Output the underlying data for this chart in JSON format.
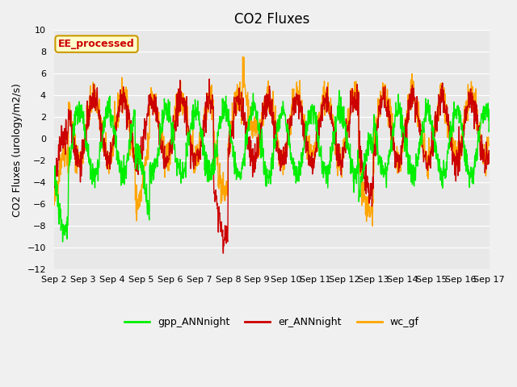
{
  "title": "CO2 Fluxes",
  "ylabel": "CO2 Fluxes (urology/m2/s)",
  "ylim": [
    -12,
    10
  ],
  "yticks": [
    -12,
    -10,
    -8,
    -6,
    -4,
    -2,
    0,
    2,
    4,
    6,
    8,
    10
  ],
  "xlim": [
    2,
    17
  ],
  "x_tick_labels": [
    "Sep 2",
    "Sep 3",
    "Sep 4",
    "Sep 5",
    "Sep 6",
    "Sep 7",
    "Sep 8",
    "Sep 9",
    "Sep 10",
    "Sep 11",
    "Sep 12",
    "Sep 13",
    "Sep 14",
    "Sep 15",
    "Sep 16",
    "Sep 17"
  ],
  "series_colors": {
    "gpp_ANNnight": "#00ee00",
    "er_ANNnight": "#cc0000",
    "wc_gf": "#ffa500"
  },
  "series_lw": 1.0,
  "annotation_text": "EE_processed",
  "annotation_color": "#cc0000",
  "annotation_bg": "#ffffcc",
  "annotation_edge": "#cc9900",
  "fig_bg": "#f0f0f0",
  "ax_bg": "#e8e8e8",
  "grid_color": "white",
  "title_fontsize": 12,
  "label_fontsize": 9,
  "tick_fontsize": 8,
  "n_points": 1500
}
